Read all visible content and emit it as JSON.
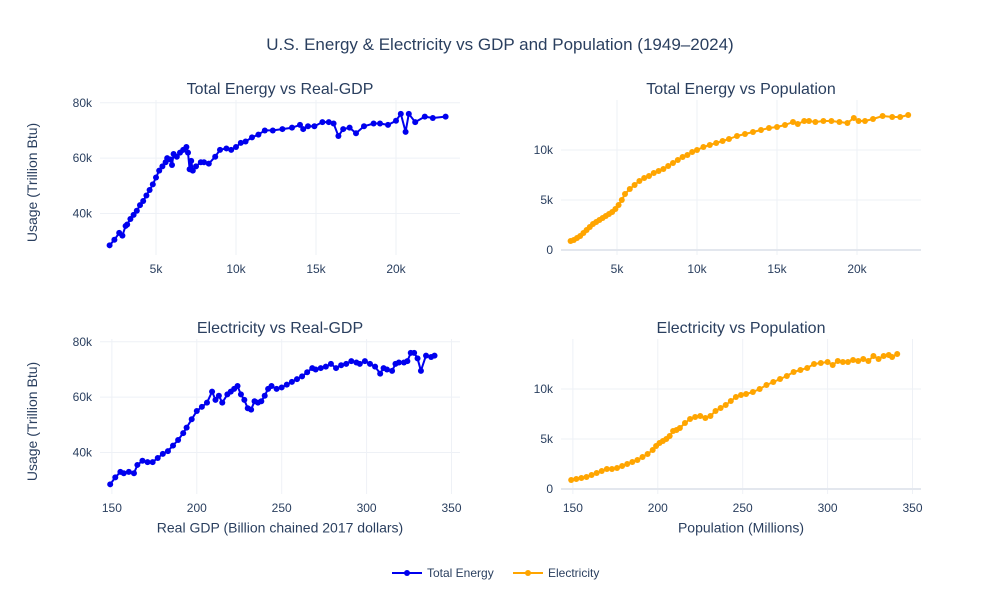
{
  "title": "U.S. Energy & Electricity vs GDP and Population (1949–2024)",
  "legend": {
    "placement": "bottom-center",
    "items": [
      {
        "label": "Total Energy",
        "color": "#0000ee"
      },
      {
        "label": "Electricity",
        "color": "#ffa500"
      }
    ]
  },
  "chart_data": [
    {
      "type": "line",
      "title": "Total Energy vs Real-GDP",
      "series_name": "Total Energy",
      "xlabel": "",
      "ylabel": "Usage (Trillion Btu)",
      "xlim": [
        1500,
        24000
      ],
      "ylim": [
        25000,
        81000
      ],
      "xticks": [
        5000,
        10000,
        15000,
        20000
      ],
      "xtick_labels": [
        "5k",
        "10k",
        "15k",
        "20k"
      ],
      "yticks": [
        40000,
        60000,
        80000
      ],
      "ytick_labels": [
        "40k",
        "60k",
        "80k"
      ],
      "grid": true,
      "x": [
        2100,
        2400,
        2700,
        2900,
        3100,
        3200,
        3400,
        3600,
        3800,
        4000,
        4200,
        4400,
        4600,
        4800,
        5000,
        5200,
        5400,
        5600,
        5700,
        5900,
        6000,
        6100,
        6300,
        6500,
        6700,
        6900,
        7000,
        7100,
        7200,
        7300,
        7500,
        7800,
        8000,
        8300,
        8700,
        9000,
        9400,
        9700,
        10000,
        10300,
        10600,
        11000,
        11400,
        11800,
        12300,
        12900,
        13500,
        14000,
        14200,
        14500,
        14900,
        15400,
        15800,
        16100,
        16400,
        16700,
        17100,
        17500,
        18000,
        18600,
        19000,
        19500,
        20000,
        20300,
        20600,
        20800,
        21200,
        21800,
        22300,
        23100
      ],
      "y": [
        28500,
        30500,
        33000,
        32000,
        35500,
        36000,
        38000,
        39500,
        41000,
        43000,
        44500,
        46500,
        48500,
        50500,
        53000,
        55500,
        57000,
        58500,
        60000,
        59500,
        57500,
        61500,
        60500,
        62000,
        63000,
        64000,
        62000,
        56000,
        59000,
        55500,
        57000,
        58500,
        58500,
        58000,
        60500,
        63000,
        63500,
        63000,
        64000,
        65500,
        66000,
        67500,
        68500,
        70000,
        70000,
        70500,
        71000,
        72000,
        70500,
        71500,
        71500,
        73000,
        73000,
        72500,
        68000,
        70500,
        71000,
        69000,
        71500,
        72500,
        72500,
        72000,
        73500,
        76000,
        69500,
        76000,
        73000,
        75000,
        74500,
        75000
      ]
    },
    {
      "type": "line",
      "title": "Total Energy vs Population",
      "series_name": "Electricity",
      "xlabel": "",
      "ylabel": "",
      "xlim": [
        1500,
        24000
      ],
      "ylim": [
        -500,
        15000
      ],
      "xticks": [
        5000,
        10000,
        15000,
        20000
      ],
      "xtick_labels": [
        "5k",
        "10k",
        "15k",
        "20k"
      ],
      "yticks": [
        0,
        5000,
        10000
      ],
      "ytick_labels": [
        "0",
        "5k",
        "10k"
      ],
      "grid": true,
      "x": [
        2100,
        2300,
        2500,
        2700,
        2900,
        3100,
        3300,
        3500,
        3700,
        3900,
        4100,
        4300,
        4500,
        4700,
        4900,
        5100,
        5300,
        5500,
        5800,
        6100,
        6400,
        6700,
        7000,
        7300,
        7600,
        7900,
        8200,
        8500,
        8800,
        9100,
        9400,
        9700,
        10000,
        10400,
        10800,
        11200,
        11600,
        12000,
        12500,
        13000,
        13500,
        14000,
        14500,
        15000,
        15500,
        16000,
        16300,
        16700,
        17000,
        17400,
        17900,
        18400,
        18900,
        19400,
        19800,
        20100,
        20500,
        21000,
        21600,
        22200,
        22700,
        23200
      ],
      "y": [
        900,
        1000,
        1200,
        1400,
        1700,
        2000,
        2300,
        2600,
        2800,
        3000,
        3200,
        3400,
        3600,
        3800,
        4100,
        4500,
        5000,
        5600,
        6100,
        6500,
        6900,
        7200,
        7400,
        7700,
        7900,
        8100,
        8400,
        8700,
        9000,
        9300,
        9500,
        9800,
        10000,
        10300,
        10500,
        10700,
        10900,
        11100,
        11400,
        11600,
        11800,
        12000,
        12200,
        12300,
        12500,
        12800,
        12600,
        12900,
        12900,
        12800,
        12900,
        12900,
        12800,
        12700,
        13200,
        12900,
        12900,
        13100,
        13400,
        13300,
        13300,
        13500
      ]
    },
    {
      "type": "line",
      "title": "Electricity vs Real-GDP",
      "series_name": "Total Energy",
      "xlabel": "Real GDP (Billion chained 2017 dollars)",
      "ylabel": "Usage (Trillion Btu)",
      "xlim": [
        143,
        355
      ],
      "ylim": [
        25000,
        81000
      ],
      "xticks": [
        150,
        200,
        250,
        300,
        350
      ],
      "xtick_labels": [
        "150",
        "200",
        "250",
        "300",
        "350"
      ],
      "yticks": [
        40000,
        60000,
        80000
      ],
      "ytick_labels": [
        "40k",
        "60k",
        "80k"
      ],
      "grid": true,
      "x": [
        149,
        152,
        155,
        157,
        160,
        163,
        165,
        168,
        171,
        174,
        177,
        180,
        183,
        186,
        189,
        192,
        194,
        197,
        200,
        203,
        206,
        209,
        211,
        213,
        215,
        218,
        220,
        222,
        224,
        226,
        228,
        230,
        232,
        234,
        236,
        238,
        240,
        242,
        244,
        247,
        250,
        253,
        256,
        259,
        262,
        265,
        268,
        270,
        273,
        276,
        279,
        282,
        285,
        288,
        291,
        294,
        296,
        299,
        302,
        305,
        308,
        310,
        312,
        315,
        317,
        319,
        322,
        324,
        326,
        328,
        330,
        332,
        335,
        338,
        340
      ],
      "y": [
        28500,
        31000,
        33000,
        32500,
        33000,
        32500,
        35500,
        37000,
        36500,
        36500,
        38000,
        39500,
        40500,
        42500,
        44500,
        47000,
        49000,
        52000,
        55000,
        56500,
        58000,
        62000,
        59000,
        60500,
        58000,
        61000,
        62000,
        63000,
        64000,
        61000,
        59000,
        56000,
        55500,
        58500,
        58000,
        58500,
        60500,
        63000,
        64000,
        63000,
        63500,
        64500,
        65500,
        66500,
        67500,
        69000,
        70500,
        70000,
        70500,
        71000,
        72000,
        70500,
        71500,
        72000,
        73000,
        72500,
        72000,
        73000,
        72000,
        71000,
        68500,
        70500,
        70000,
        69500,
        72000,
        72500,
        72500,
        73000,
        76000,
        76000,
        74000,
        69500,
        75000,
        74500,
        75000
      ]
    },
    {
      "type": "line",
      "title": "Electricity vs Population",
      "series_name": "Electricity",
      "xlabel": "Population (Millions)",
      "ylabel": "",
      "xlim": [
        143,
        355
      ],
      "ylim": [
        -500,
        15000
      ],
      "xticks": [
        150,
        200,
        250,
        300,
        350
      ],
      "xtick_labels": [
        "150",
        "200",
        "250",
        "300",
        "350"
      ],
      "yticks": [
        0,
        5000,
        10000
      ],
      "ytick_labels": [
        "0",
        "5k",
        "10k"
      ],
      "grid": true,
      "x": [
        149,
        152,
        155,
        158,
        161,
        164,
        167,
        170,
        173,
        176,
        179,
        182,
        185,
        188,
        191,
        194,
        197,
        199,
        201,
        203,
        205,
        207,
        209,
        211,
        213,
        216,
        219,
        222,
        225,
        228,
        231,
        234,
        237,
        240,
        243,
        246,
        249,
        252,
        256,
        260,
        264,
        268,
        272,
        276,
        280,
        284,
        288,
        292,
        296,
        300,
        303,
        306,
        309,
        312,
        315,
        318,
        321,
        324,
        327,
        330,
        333,
        336,
        338,
        341
      ],
      "y": [
        900,
        1000,
        1100,
        1200,
        1400,
        1600,
        1800,
        2000,
        2000,
        2100,
        2300,
        2500,
        2700,
        2900,
        3200,
        3500,
        3900,
        4300,
        4600,
        4800,
        5000,
        5300,
        5800,
        5900,
        6100,
        6600,
        7000,
        7200,
        7300,
        7100,
        7300,
        7800,
        8100,
        8400,
        8800,
        9200,
        9400,
        9500,
        9700,
        10000,
        10400,
        10700,
        11000,
        11300,
        11700,
        11900,
        12100,
        12500,
        12600,
        12700,
        12400,
        12800,
        12700,
        12700,
        12900,
        12800,
        13000,
        12800,
        13300,
        13000,
        13300,
        13400,
        13200,
        13500
      ]
    }
  ]
}
